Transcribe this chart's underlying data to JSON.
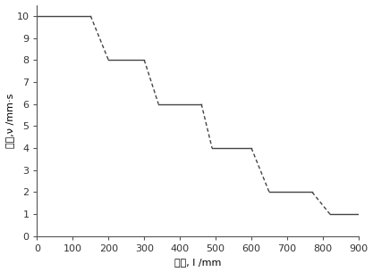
{
  "title": "",
  "xlabel": "位置, l /mm",
  "ylabel": "速度,ν /mm·s",
  "xlim": [
    0,
    900
  ],
  "ylim": [
    0,
    10.5
  ],
  "xticks": [
    0,
    100,
    200,
    300,
    400,
    500,
    600,
    700,
    800,
    900
  ],
  "yticks": [
    0,
    1,
    2,
    3,
    4,
    5,
    6,
    7,
    8,
    9,
    10
  ],
  "ytick_labels": [
    "0",
    "1",
    "2",
    "3",
    "4",
    "5",
    "6",
    "7",
    "8",
    "9",
    "10"
  ],
  "solid_segments": [
    [
      [
        0,
        150
      ],
      [
        10,
        10
      ]
    ],
    [
      [
        200,
        300
      ],
      [
        8,
        8
      ]
    ],
    [
      [
        340,
        460
      ],
      [
        6,
        6
      ]
    ],
    [
      [
        490,
        600
      ],
      [
        4,
        4
      ]
    ],
    [
      [
        650,
        770
      ],
      [
        2,
        2
      ]
    ],
    [
      [
        820,
        900
      ],
      [
        1,
        1
      ]
    ]
  ],
  "dashed_segments": [
    [
      [
        150,
        200
      ],
      [
        10,
        8
      ]
    ],
    [
      [
        300,
        340
      ],
      [
        8,
        6
      ]
    ],
    [
      [
        460,
        490
      ],
      [
        6,
        4
      ]
    ],
    [
      [
        600,
        650
      ],
      [
        4,
        2
      ]
    ],
    [
      [
        770,
        820
      ],
      [
        2,
        1
      ]
    ]
  ],
  "line_color": "#444444",
  "background_color": "#ffffff",
  "figsize": [
    4.17,
    3.05
  ],
  "dpi": 100,
  "font_size": 8
}
